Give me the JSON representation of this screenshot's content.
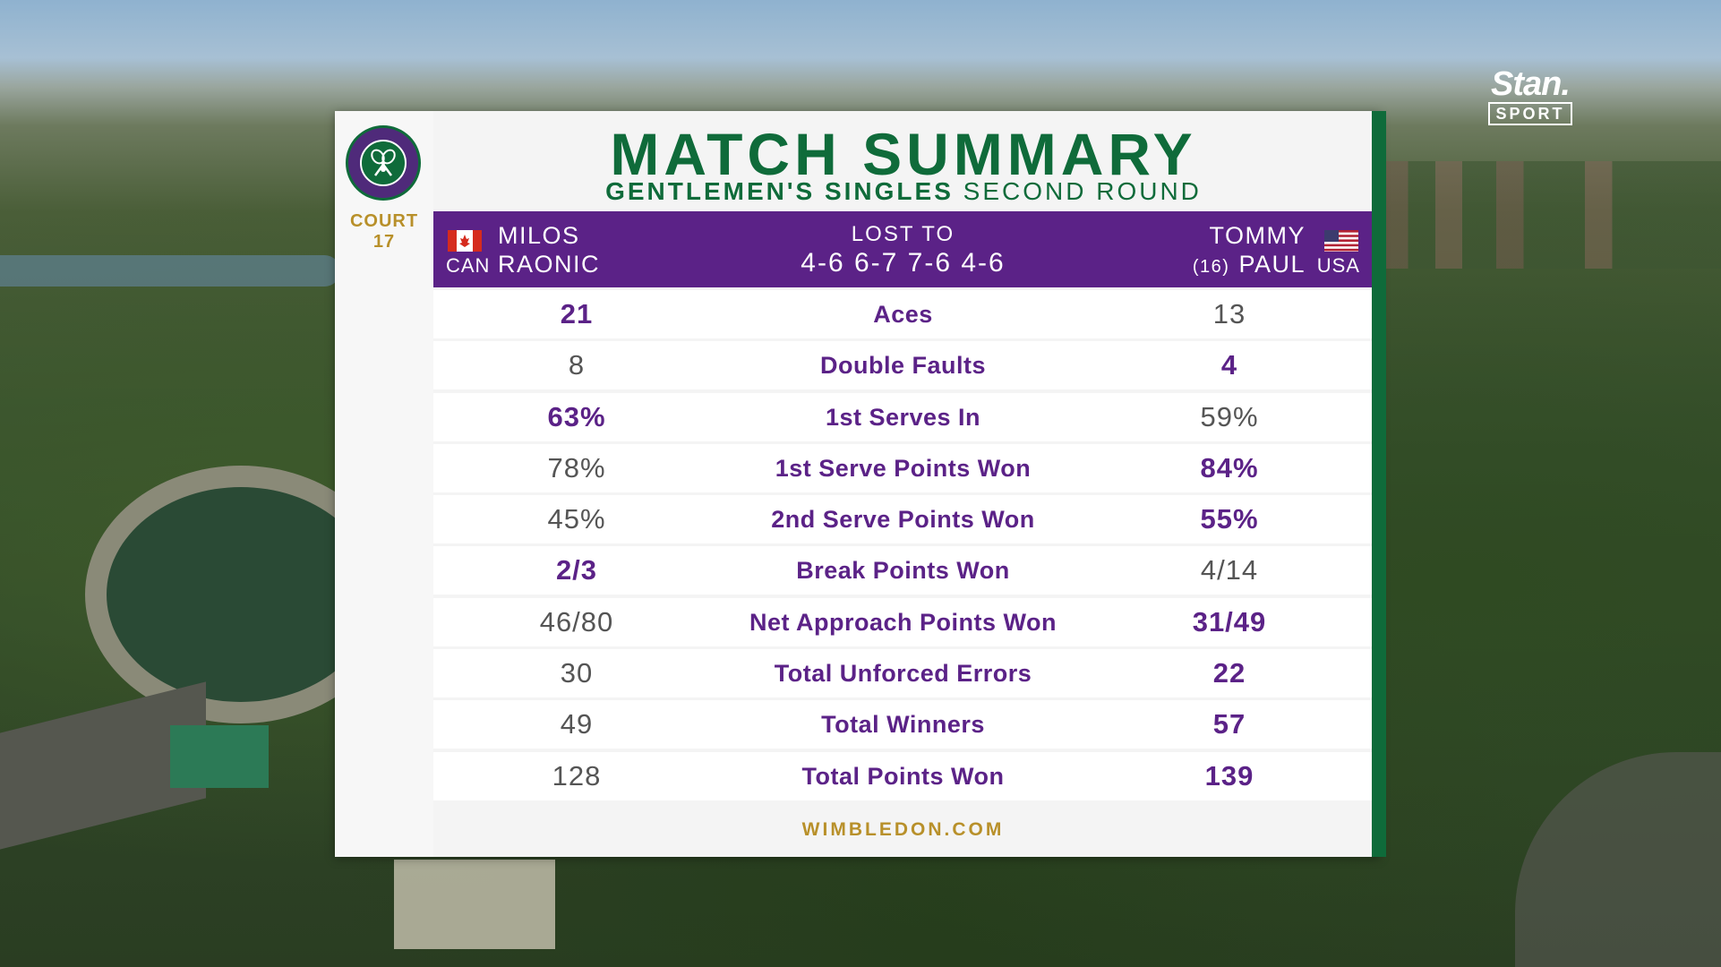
{
  "broadcaster": {
    "name": "Stan.",
    "tag": "SPORT"
  },
  "venue": {
    "court_label": "COURT",
    "court_number": "17"
  },
  "header": {
    "title": "MATCH SUMMARY",
    "event": "GENTLEMEN'S SINGLES",
    "round": "SECOND ROUND"
  },
  "player1": {
    "first": "MILOS",
    "last": "RAONIC",
    "country": "CAN",
    "flag_icon": "canada-flag-icon"
  },
  "player2": {
    "first": "TOMMY",
    "last": "PAUL",
    "seed": "(16)",
    "country": "USA",
    "flag_icon": "usa-flag-icon"
  },
  "result": {
    "label": "LOST TO",
    "score": "4-6 6-7 7-6 4-6"
  },
  "stats": [
    {
      "label": "Aces",
      "p1": "21",
      "p2": "13",
      "leader": "p1"
    },
    {
      "label": "Double Faults",
      "p1": "8",
      "p2": "4",
      "leader": "p2"
    },
    {
      "label": "1st Serves In",
      "p1": "63%",
      "p2": "59%",
      "leader": "p1"
    },
    {
      "label": "1st Serve Points Won",
      "p1": "78%",
      "p2": "84%",
      "leader": "p2"
    },
    {
      "label": "2nd Serve Points Won",
      "p1": "45%",
      "p2": "55%",
      "leader": "p2"
    },
    {
      "label": "Break Points Won",
      "p1": "2/3",
      "p2": "4/14",
      "leader": "p1"
    },
    {
      "label": "Net Approach Points Won",
      "p1": "46/80",
      "p2": "31/49",
      "leader": "p2"
    },
    {
      "label": "Total Unforced Errors",
      "p1": "30",
      "p2": "22",
      "leader": "p2"
    },
    {
      "label": "Total Winners",
      "p1": "49",
      "p2": "57",
      "leader": "p2"
    },
    {
      "label": "Total Points Won",
      "p1": "128",
      "p2": "139",
      "leader": "p2"
    }
  ],
  "footer": {
    "website": "WIMBLEDON.COM"
  },
  "colors": {
    "purple": "#5b2287",
    "green": "#0f6b3a",
    "gold": "#b8902a"
  }
}
